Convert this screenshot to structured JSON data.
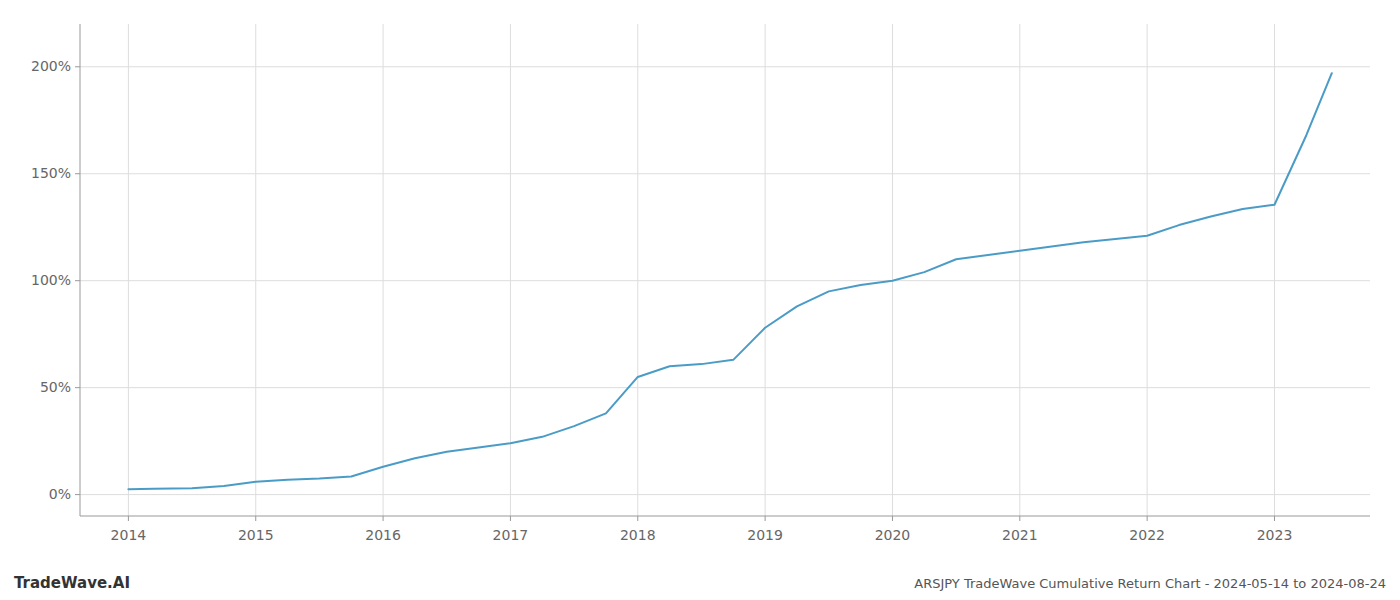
{
  "chart_data": {
    "type": "line",
    "x": [
      2014.0,
      2014.2,
      2014.5,
      2014.75,
      2015.0,
      2015.25,
      2015.5,
      2015.75,
      2016.0,
      2016.25,
      2016.5,
      2016.75,
      2017.0,
      2017.25,
      2017.5,
      2017.75,
      2018.0,
      2018.25,
      2018.5,
      2018.75,
      2019.0,
      2019.25,
      2019.5,
      2019.75,
      2020.0,
      2020.25,
      2020.5,
      2020.75,
      2021.0,
      2021.25,
      2021.5,
      2021.75,
      2022.0,
      2022.25,
      2022.5,
      2022.75,
      2023.0,
      2023.25,
      2023.45
    ],
    "values": [
      2.5,
      2.7,
      3.0,
      4.0,
      6.0,
      7.0,
      7.5,
      8.5,
      13.0,
      17.0,
      20.0,
      22.0,
      24.0,
      27.0,
      32.0,
      38.0,
      55.0,
      60.0,
      61.0,
      63.0,
      78.0,
      88.0,
      95.0,
      98.0,
      100.0,
      104.0,
      110.0,
      112.0,
      114.0,
      116.0,
      118.0,
      119.5,
      121.0,
      126.0,
      130.0,
      133.5,
      135.5,
      168.0,
      197.0
    ],
    "color": "#4a9cc7",
    "xlim": [
      2013.62,
      2023.75
    ],
    "xticks": [
      2014,
      2015,
      2016,
      2017,
      2018,
      2019,
      2020,
      2021,
      2022,
      2023
    ],
    "ylim": [
      -10,
      220
    ],
    "yticks": [
      {
        "value": 0,
        "label": "0%"
      },
      {
        "value": 50,
        "label": "50%"
      },
      {
        "value": 100,
        "label": "100%"
      },
      {
        "value": 150,
        "label": "150%"
      },
      {
        "value": 200,
        "label": "200%"
      }
    ],
    "grid": true,
    "annotations": [
      "TradeWave.AI",
      "ARSJPY TradeWave Cumulative Return Chart - 2024-05-14 to 2024-08-24"
    ]
  }
}
